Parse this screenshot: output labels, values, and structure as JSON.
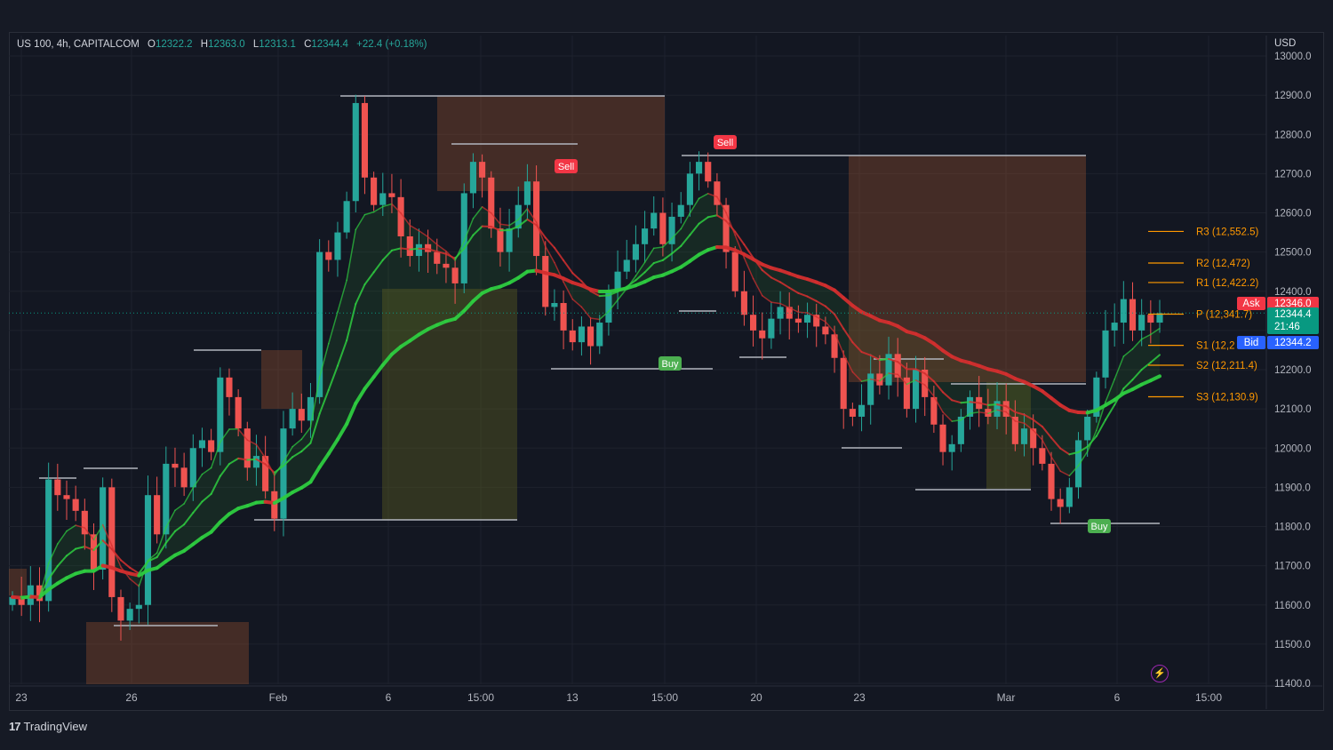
{
  "header": {
    "symbol": "US 100, 4h, CAPITALCOM",
    "open_label": "O",
    "open": "12322.2",
    "high_label": "H",
    "high": "12363.0",
    "low_label": "L",
    "low": "12313.1",
    "close_label": "C",
    "close": "12344.4",
    "change": "+22.4 (+0.18%)"
  },
  "currency": "USD",
  "footer": {
    "brand": "TradingView",
    "logo": "17"
  },
  "chart_data": {
    "type": "candlestick",
    "x_tick_labels": [
      "23",
      "26",
      "Feb",
      "6",
      "15:00",
      "13",
      "15:00",
      "20",
      "23",
      "Mar",
      "6",
      "15:00"
    ],
    "y_tick_labels": [
      "13000.0",
      "12900.0",
      "12800.0",
      "12700.0",
      "12600.0",
      "12500.0",
      "12400.0",
      "12300.0",
      "12200.0",
      "12100.0",
      "12000.0",
      "11900.0",
      "11800.0",
      "11700.0",
      "11600.0",
      "11500.0",
      "11400.0"
    ],
    "ylim": [
      11400,
      13000
    ],
    "close_path": [
      11620,
      11600,
      11650,
      11610,
      11920,
      11880,
      11870,
      11840,
      11780,
      11690,
      11900,
      11620,
      11560,
      11590,
      11600,
      11880,
      11780,
      11960,
      11950,
      11900,
      12000,
      12020,
      11990,
      12180,
      12130,
      12050,
      11950,
      11980,
      11890,
      11820,
      12050,
      12100,
      12070,
      12130,
      12500,
      12480,
      12550,
      12630,
      12880,
      12690,
      12620,
      12650,
      12640,
      12540,
      12490,
      12520,
      12500,
      12470,
      12460,
      12420,
      12650,
      12730,
      12690,
      12560,
      12500,
      12560,
      12620,
      12680,
      12490,
      12360,
      12370,
      12300,
      12270,
      12310,
      12260,
      12320,
      12400,
      12450,
      12480,
      12520,
      12560,
      12600,
      12520,
      12590,
      12620,
      12700,
      12730,
      12680,
      12620,
      12500,
      12400,
      12340,
      12300,
      12280,
      12330,
      12360,
      12330,
      12320,
      12340,
      12310,
      12290,
      12230,
      12100,
      12080,
      12110,
      12190,
      12160,
      12240,
      12180,
      12100,
      12200,
      12130,
      12060,
      11990,
      12010,
      12080,
      12130,
      12100,
      12080,
      12120,
      12080,
      12010,
      12050,
      12000,
      11960,
      11870,
      11850,
      11900,
      12020,
      12080,
      12180,
      12300,
      12320,
      12380,
      12300,
      12340,
      12320,
      12344
    ],
    "pivot_levels": [
      {
        "label": "R3 (12,552.5)",
        "value": 12552.5
      },
      {
        "label": "R2 (12,472)",
        "value": 12472
      },
      {
        "label": "R1 (12,422.2)",
        "value": 12422.2
      },
      {
        "label": "P (12,341.7)",
        "value": 12341.7
      },
      {
        "label": "S1 (12,2",
        "value": 12262
      },
      {
        "label": "S2 (12,211.4)",
        "value": 12211.4
      },
      {
        "label": "S3 (12,130.9)",
        "value": 12130.9
      }
    ],
    "price_tags": [
      {
        "label": "Ask",
        "value": "12346.0",
        "color": "#f23645"
      },
      {
        "label": "",
        "value": "12344.4",
        "extra": "21:46",
        "color": "#089981"
      },
      {
        "label": "Bid",
        "value": "12344.2",
        "color": "#2962ff"
      }
    ],
    "signals": [
      {
        "label": "Sell",
        "color": "#f23645"
      },
      {
        "label": "Sell",
        "color": "#f23645"
      },
      {
        "label": "Buy",
        "color": "#4caf50"
      },
      {
        "label": "Buy",
        "color": "#4caf50"
      }
    ],
    "colors": {
      "up": "#26a69a",
      "down": "#ef5350",
      "bg": "#131722",
      "grid": "#1e222d"
    }
  }
}
